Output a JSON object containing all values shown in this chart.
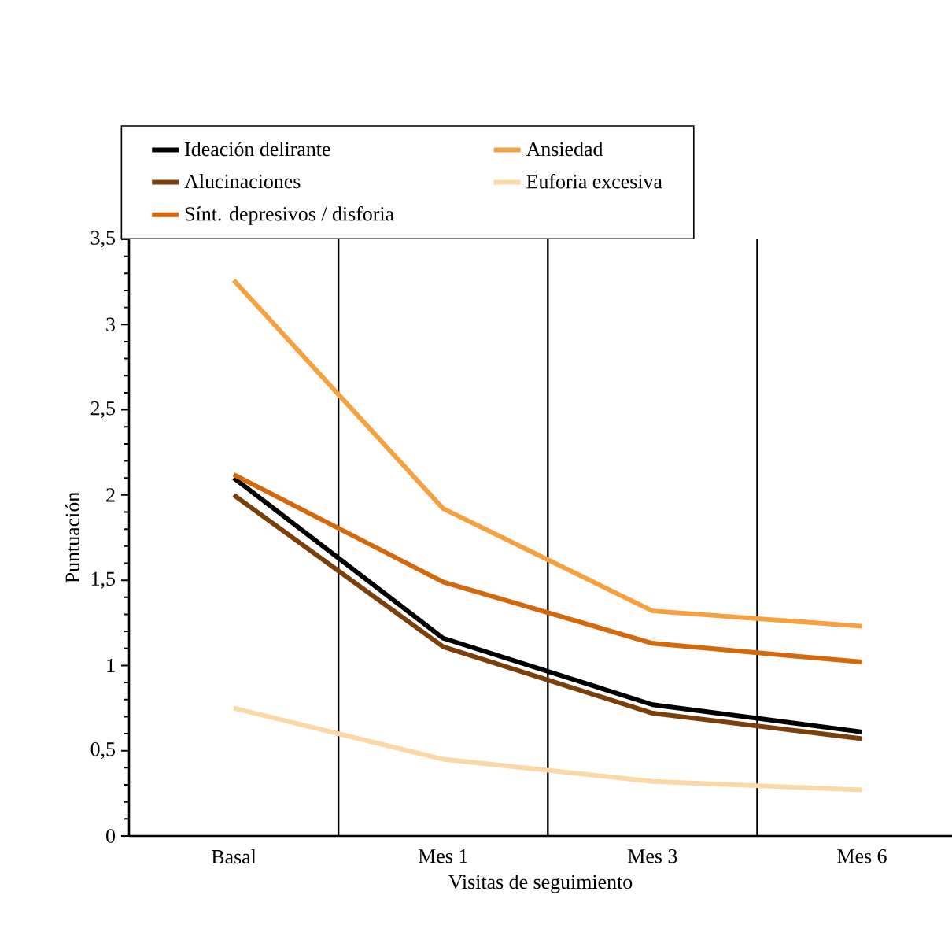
{
  "chart_data": {
    "type": "line",
    "xlabel": "Visitas de seguimiento",
    "ylabel": "Puntuación",
    "categories": [
      "Basal",
      "Mes 1",
      "Mes 3",
      "Mes 6"
    ],
    "series": [
      {
        "name": "Ideación delirante",
        "color": "#000000",
        "values": [
          2.1,
          1.16,
          0.77,
          0.61
        ]
      },
      {
        "name": "Alucinaciones",
        "color": "#7a3f0a",
        "values": [
          2.0,
          1.11,
          0.72,
          0.57
        ]
      },
      {
        "name": "Sínt. depresivos / disforia",
        "color": "#d4680c",
        "values": [
          2.12,
          1.49,
          1.13,
          1.02
        ]
      },
      {
        "name": "Ansiedad",
        "color": "#f7a040",
        "values": [
          3.26,
          1.92,
          1.32,
          1.23
        ]
      },
      {
        "name": "Euforia excesiva",
        "color": "#fcd8a8",
        "values": [
          0.75,
          0.45,
          0.32,
          0.27
        ]
      }
    ],
    "ylim": [
      0,
      3.5
    ],
    "yticks": [
      0,
      {
        "value": 0.5,
        "label": "0,5"
      },
      1,
      {
        "value": 1.5,
        "label": "1,5"
      },
      2,
      {
        "value": 2.5,
        "label": "2,5"
      },
      3,
      {
        "value": 3.5,
        "label": "3,5"
      }
    ],
    "grid": "x",
    "legend": "top",
    "marker": "none",
    "line_style": "solid"
  }
}
